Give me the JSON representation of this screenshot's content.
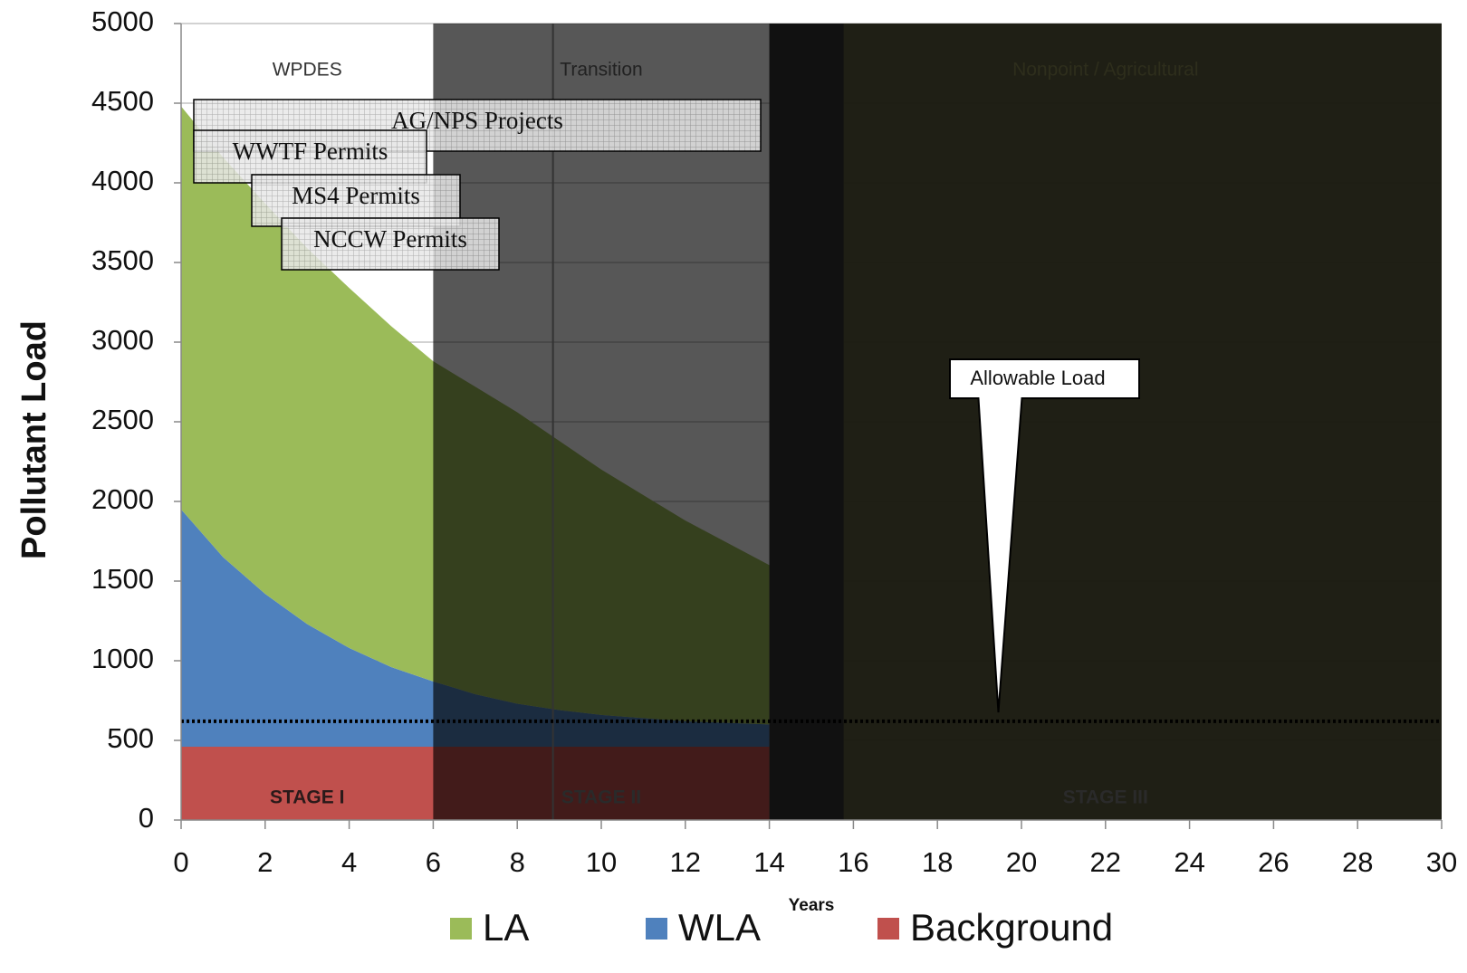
{
  "chart_data": {
    "type": "stacked_area",
    "x_label": "Years",
    "y_label": "Pollutant Load",
    "x": [
      0,
      1,
      2,
      3,
      4,
      5,
      6,
      7,
      8,
      9,
      10,
      11,
      12,
      13,
      14
    ],
    "series": [
      {
        "name": "LA",
        "color": "#9bbb59",
        "values": [
          2530,
          2510,
          2450,
          2360,
          2260,
          2140,
          2010,
          1930,
          1830,
          1690,
          1540,
          1400,
          1260,
          1130,
          1000
        ]
      },
      {
        "name": "WLA",
        "color": "#4f81bd",
        "values": [
          1490,
          1190,
          960,
          770,
          620,
          500,
          410,
          330,
          270,
          230,
          200,
          180,
          160,
          150,
          140
        ]
      },
      {
        "name": "Background",
        "color": "#c0504d",
        "values": [
          460,
          460,
          460,
          460,
          460,
          460,
          460,
          460,
          460,
          460,
          460,
          460,
          460,
          460,
          460
        ]
      }
    ],
    "xlim": [
      0,
      30
    ],
    "xticks": [
      0,
      2,
      4,
      6,
      8,
      10,
      12,
      14,
      16,
      18,
      20,
      22,
      24,
      26,
      28,
      30
    ],
    "ylim": [
      0,
      5000
    ],
    "yticks": [
      0,
      500,
      1000,
      1500,
      2000,
      2500,
      3000,
      3500,
      4000,
      4500,
      5000
    ],
    "grid": true,
    "phases": [
      {
        "label": "WPDES",
        "stage": "STAGE I",
        "start": 0,
        "end": 6,
        "color": "none"
      },
      {
        "label": "Transition",
        "stage": "STAGE II",
        "start": 6,
        "end": 14,
        "color": "#000000"
      },
      {
        "label": "Nonpoint / Agricultural",
        "stage": "STAGE III",
        "start": 14,
        "end": 30,
        "color": "#1b1b10"
      }
    ],
    "allowable_load": 620,
    "annotation": {
      "text": "Allowable Load",
      "x": 19.45,
      "y": 676
    },
    "permits": [
      "AG/NPS Projects",
      "WWTF Permits",
      "MS4 Permits",
      "NCCW Permits"
    ]
  }
}
